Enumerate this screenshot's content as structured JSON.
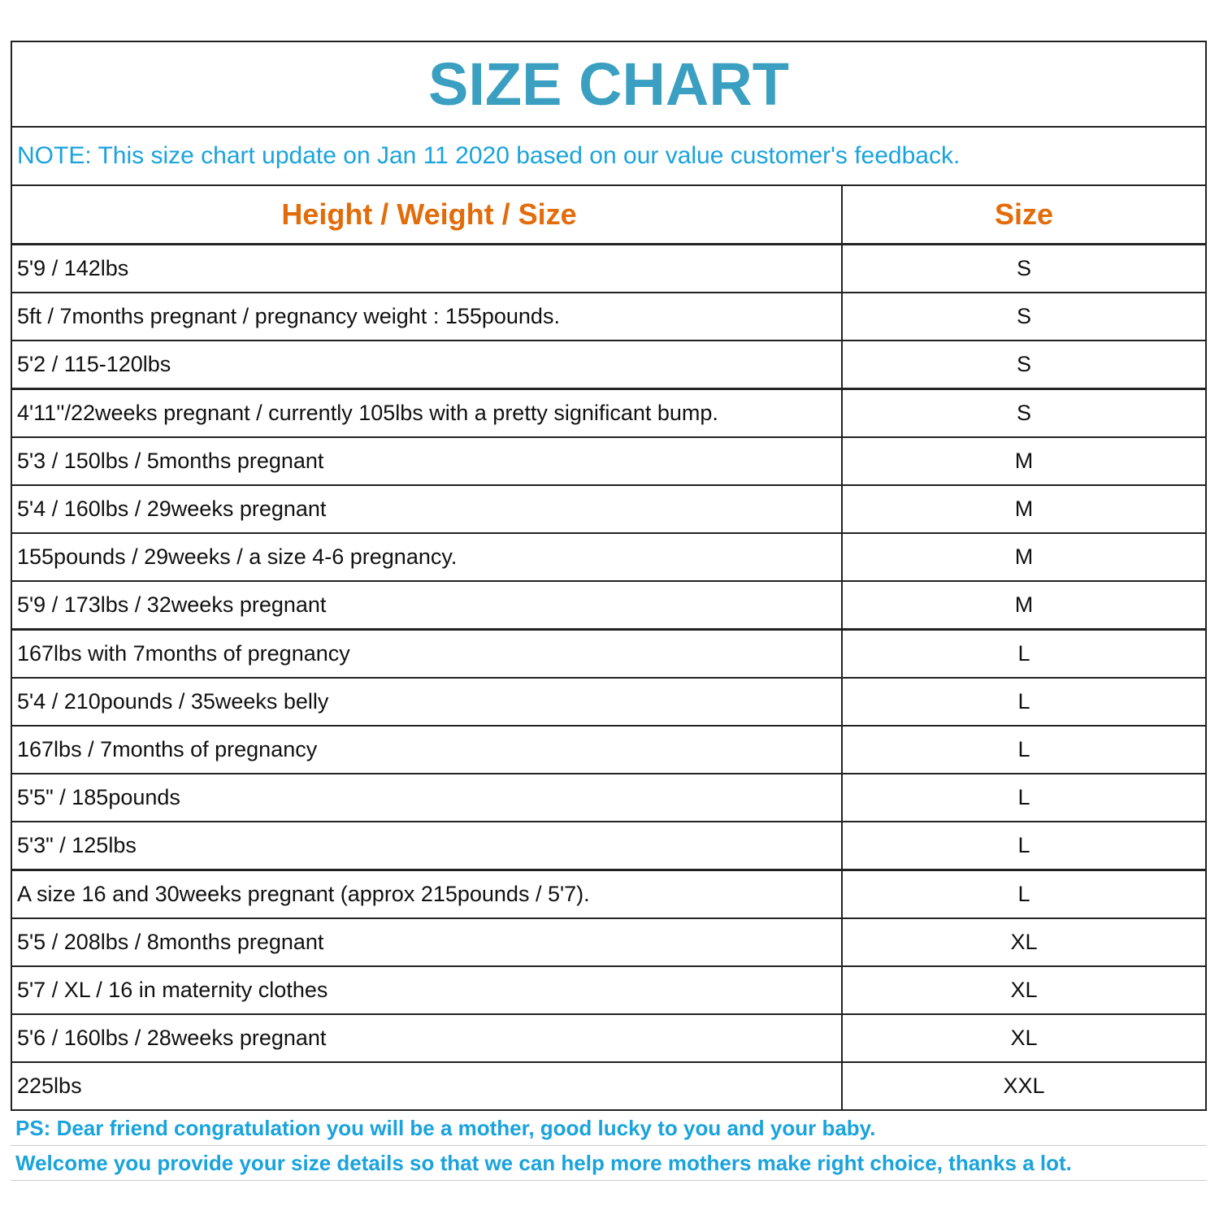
{
  "title": "SIZE CHART",
  "note": "NOTE: This size chart update on Jan 11 2020 based on our value customer's feedback.",
  "table": {
    "headers": [
      "Height / Weight / Size",
      "Size"
    ],
    "rows": [
      [
        "5'9 / 142lbs",
        "S"
      ],
      [
        "5ft / 7months pregnant / pregnancy weight : 155pounds.",
        "S"
      ],
      [
        "5'2 / 115-120lbs",
        "S"
      ],
      [
        "4'11''/22weeks pregnant / currently 105lbs  with a pretty significant bump.",
        "S"
      ],
      [
        "5'3 / 150lbs / 5months pregnant",
        "M"
      ],
      [
        "5'4 / 160lbs / 29weeks pregnant",
        "M"
      ],
      [
        "155pounds / 29weeks / a size 4-6 pregnancy.",
        "M"
      ],
      [
        "5'9 / 173lbs / 32weeks pregnant",
        "M"
      ],
      [
        "167lbs with 7months of pregnancy",
        "L"
      ],
      [
        "5'4 / 210pounds / 35weeks belly",
        "L"
      ],
      [
        "167lbs / 7months of pregnancy",
        "L"
      ],
      [
        "5'5\" / 185pounds",
        "L"
      ],
      [
        "5'3\" / 125lbs",
        "L"
      ],
      [
        "A size 16 and 30weeks pregnant (approx 215pounds / 5'7).",
        "L"
      ],
      [
        "5'5 / 208lbs / 8months pregnant",
        "XL"
      ],
      [
        "5'7 / XL / 16 in maternity clothes",
        "XL"
      ],
      [
        "5'6 / 160lbs / 28weeks pregnant",
        "XL"
      ],
      [
        "225lbs",
        "XXL"
      ]
    ]
  },
  "footer": [
    "PS: Dear friend congratulation you will be a mother, good lucky to you and your baby.",
    "Welcome you provide your size details so that we can help more mothers make right choice, thanks a lot."
  ]
}
